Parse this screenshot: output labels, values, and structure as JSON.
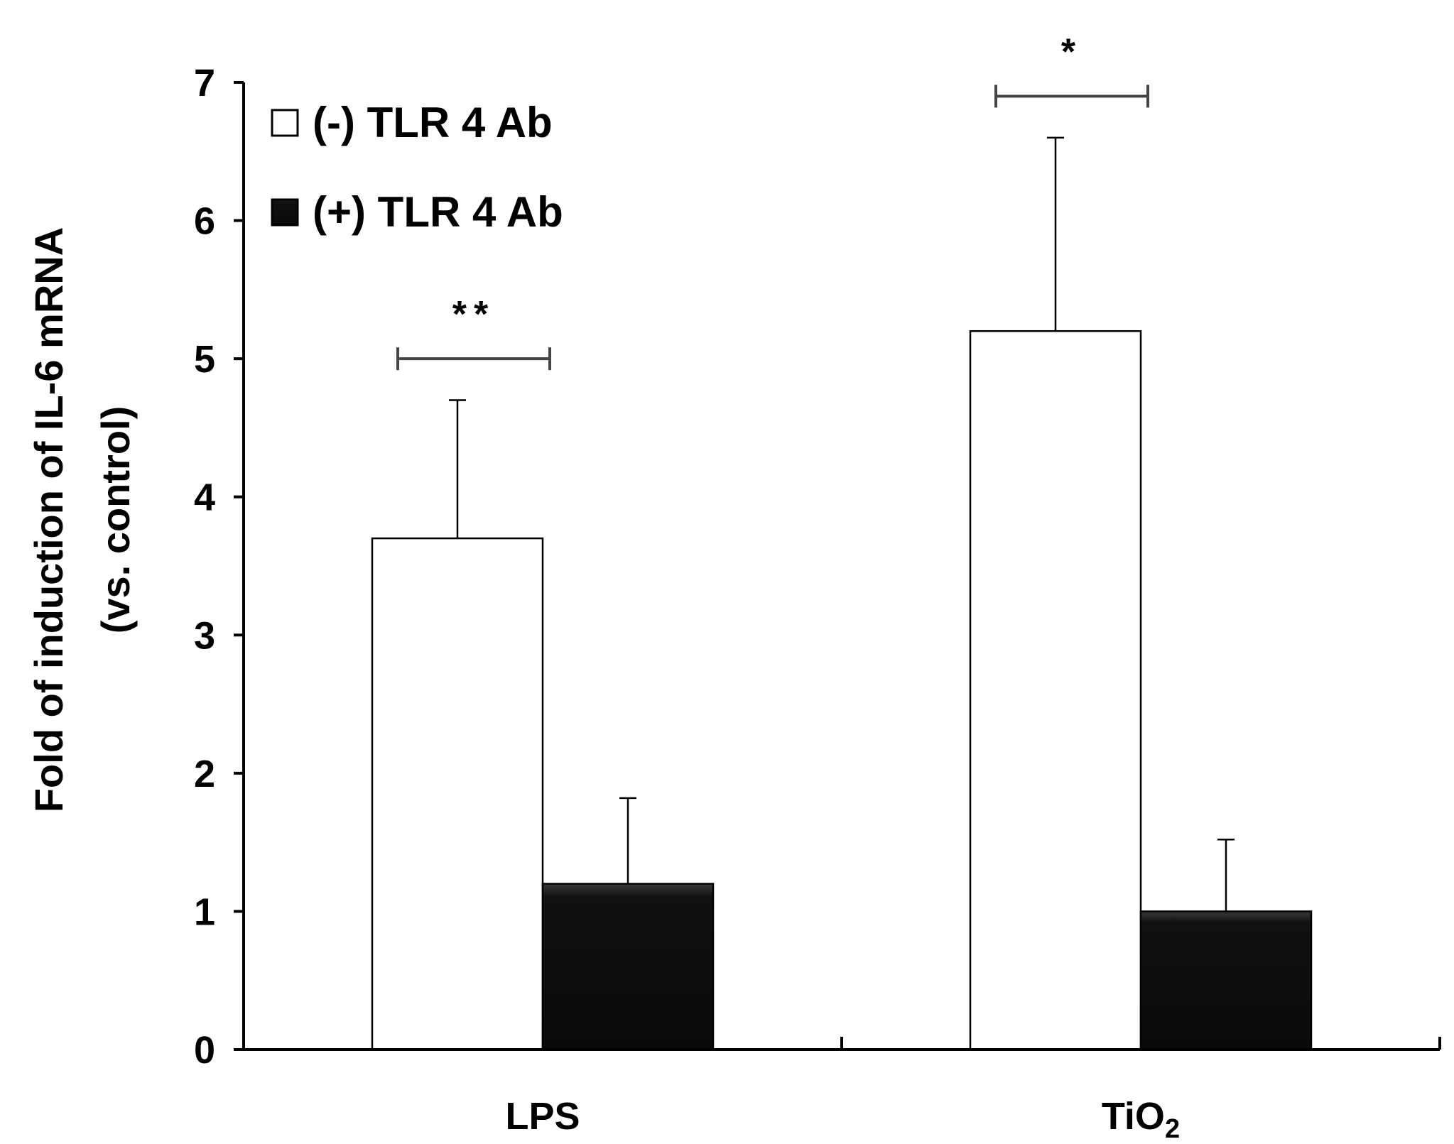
{
  "chart_data": {
    "type": "bar",
    "title": "",
    "xlabel": "",
    "ylabel_line1": "Fold of  induction of IL-6 mRNA",
    "ylabel_line2": "(vs. control)",
    "ylim": [
      0,
      7
    ],
    "yticks": [
      0,
      1,
      2,
      3,
      4,
      5,
      6,
      7
    ],
    "categories": [
      "LPS",
      "TiO2"
    ],
    "category_labels": [
      {
        "main": "LPS",
        "sub": ""
      },
      {
        "main": "TiO",
        "sub": "2"
      }
    ],
    "series": [
      {
        "name": "(-) TLR 4 Ab",
        "color": "#ffffff",
        "values": [
          3.7,
          5.2
        ],
        "errors": [
          1.0,
          1.4
        ]
      },
      {
        "name": "(+) TLR 4 Ab",
        "color": "#111111",
        "values": [
          1.2,
          1.0
        ],
        "errors": [
          0.62,
          0.52
        ]
      }
    ],
    "significance": [
      {
        "category": "LPS",
        "label": "**",
        "y": 5.0
      },
      {
        "category": "TiO2",
        "label": "*",
        "y": 6.9
      }
    ],
    "legend_position": "top-left",
    "grid": false
  }
}
